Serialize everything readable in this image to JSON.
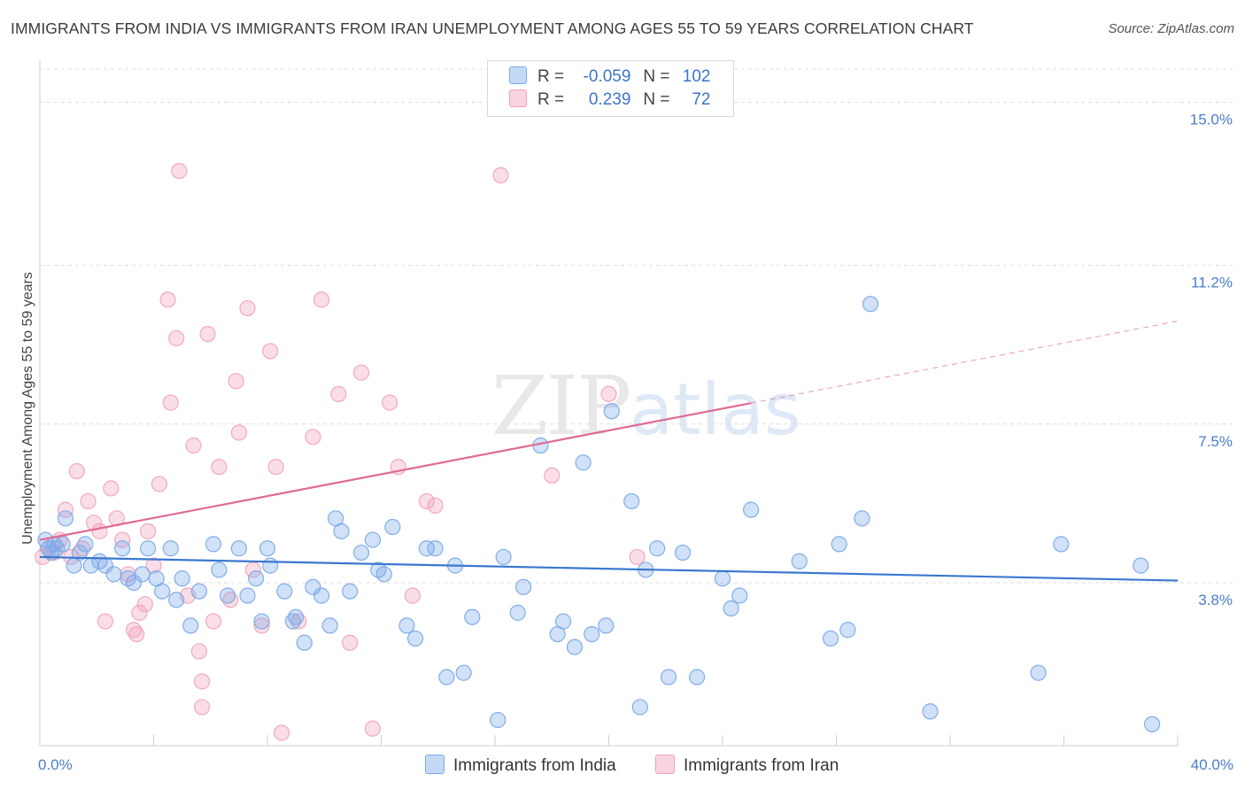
{
  "title": "IMMIGRANTS FROM INDIA VS IMMIGRANTS FROM IRAN UNEMPLOYMENT AMONG AGES 55 TO 59 YEARS CORRELATION CHART",
  "source": "Source: ZipAtlas.com",
  "watermark": {
    "zip": "ZIP",
    "atlas": "atlas"
  },
  "legend": {
    "india": {
      "r_label": "R =",
      "r_value": "-0.059",
      "n_label": "N =",
      "n_value": "102"
    },
    "iran": {
      "r_label": "R =",
      "r_value": "0.239",
      "n_label": "N =",
      "n_value": "72"
    }
  },
  "colors": {
    "india": "#7aaae8",
    "india_line": "#3a78d0",
    "iran": "#f2a0bb",
    "iran_line": "#e06a95"
  },
  "chart_data": {
    "type": "scatter",
    "title": "IMMIGRANTS FROM INDIA VS IMMIGRANTS FROM IRAN UNEMPLOYMENT AMONG AGES 55 TO 59 YEARS CORRELATION CHART",
    "xlabel": "",
    "ylabel": "Unemployment Among Ages 55 to 59 years",
    "xlim": [
      0,
      40
    ],
    "ylim": [
      0,
      15.9
    ],
    "x_tick_labels": [
      "0.0%",
      "40.0%"
    ],
    "y_ticks": [
      3.8,
      7.5,
      11.2,
      15.0
    ],
    "y_tick_labels": [
      "3.8%",
      "7.5%",
      "11.2%",
      "15.0%"
    ],
    "grid": true,
    "legend_position": "top-center",
    "series": [
      {
        "name": "Immigrants from India",
        "trend": {
          "x": [
            0,
            40
          ],
          "y": [
            4.4,
            3.85
          ]
        },
        "points": [
          [
            0.2,
            4.8
          ],
          [
            0.3,
            4.6
          ],
          [
            0.4,
            4.5
          ],
          [
            0.5,
            4.7
          ],
          [
            0.6,
            4.6
          ],
          [
            0.8,
            4.7
          ],
          [
            0.9,
            5.3
          ],
          [
            1.2,
            4.2
          ],
          [
            1.4,
            4.5
          ],
          [
            1.6,
            4.7
          ],
          [
            1.8,
            4.2
          ],
          [
            2.1,
            4.3
          ],
          [
            2.3,
            4.2
          ],
          [
            2.6,
            4.0
          ],
          [
            2.9,
            4.6
          ],
          [
            3.1,
            3.9
          ],
          [
            3.3,
            3.8
          ],
          [
            3.6,
            4.0
          ],
          [
            3.8,
            4.6
          ],
          [
            4.1,
            3.9
          ],
          [
            4.3,
            3.6
          ],
          [
            4.6,
            4.6
          ],
          [
            4.8,
            3.4
          ],
          [
            5.0,
            3.9
          ],
          [
            5.3,
            2.8
          ],
          [
            5.6,
            3.6
          ],
          [
            6.1,
            4.7
          ],
          [
            6.3,
            4.1
          ],
          [
            6.6,
            3.5
          ],
          [
            7.0,
            4.6
          ],
          [
            7.3,
            3.5
          ],
          [
            7.6,
            3.9
          ],
          [
            7.8,
            2.9
          ],
          [
            8.0,
            4.6
          ],
          [
            8.1,
            4.2
          ],
          [
            8.6,
            3.6
          ],
          [
            8.9,
            2.9
          ],
          [
            9.0,
            3.0
          ],
          [
            9.3,
            2.4
          ],
          [
            9.6,
            3.7
          ],
          [
            9.9,
            3.5
          ],
          [
            10.2,
            2.8
          ],
          [
            10.4,
            5.3
          ],
          [
            10.6,
            5.0
          ],
          [
            10.9,
            3.6
          ],
          [
            11.3,
            4.5
          ],
          [
            11.7,
            4.8
          ],
          [
            11.9,
            4.1
          ],
          [
            12.1,
            4.0
          ],
          [
            12.4,
            5.1
          ],
          [
            12.9,
            2.8
          ],
          [
            13.2,
            2.5
          ],
          [
            13.6,
            4.6
          ],
          [
            13.9,
            4.6
          ],
          [
            14.3,
            1.6
          ],
          [
            14.6,
            4.2
          ],
          [
            14.9,
            1.7
          ],
          [
            15.2,
            3.0
          ],
          [
            16.1,
            0.6
          ],
          [
            16.3,
            4.4
          ],
          [
            16.8,
            3.1
          ],
          [
            17.0,
            3.7
          ],
          [
            17.6,
            7.0
          ],
          [
            18.2,
            2.6
          ],
          [
            18.4,
            2.9
          ],
          [
            18.8,
            2.3
          ],
          [
            19.1,
            6.6
          ],
          [
            19.4,
            2.6
          ],
          [
            19.9,
            2.8
          ],
          [
            20.1,
            7.8
          ],
          [
            20.8,
            5.7
          ],
          [
            21.1,
            0.9
          ],
          [
            21.3,
            4.1
          ],
          [
            21.7,
            4.6
          ],
          [
            22.1,
            1.6
          ],
          [
            22.6,
            4.5
          ],
          [
            23.1,
            1.6
          ],
          [
            24.0,
            3.9
          ],
          [
            24.3,
            3.2
          ],
          [
            24.6,
            3.5
          ],
          [
            25.0,
            5.5
          ],
          [
            26.7,
            4.3
          ],
          [
            27.8,
            2.5
          ],
          [
            28.1,
            4.7
          ],
          [
            28.4,
            2.7
          ],
          [
            28.9,
            5.3
          ],
          [
            29.2,
            10.3
          ],
          [
            31.3,
            0.8
          ],
          [
            35.1,
            1.7
          ],
          [
            35.9,
            4.7
          ],
          [
            38.7,
            4.2
          ],
          [
            39.1,
            0.5
          ]
        ]
      },
      {
        "name": "Immigrants from Iran",
        "trend": {
          "x": [
            0,
            40
          ],
          "y": [
            4.8,
            9.9
          ],
          "solid_until_x": 25
        },
        "points": [
          [
            0.1,
            4.4
          ],
          [
            0.3,
            4.6
          ],
          [
            0.5,
            4.5
          ],
          [
            0.7,
            4.8
          ],
          [
            0.9,
            5.5
          ],
          [
            1.1,
            4.4
          ],
          [
            1.3,
            6.4
          ],
          [
            1.5,
            4.6
          ],
          [
            1.7,
            5.7
          ],
          [
            1.9,
            5.2
          ],
          [
            2.1,
            5.0
          ],
          [
            2.3,
            2.9
          ],
          [
            2.5,
            6.0
          ],
          [
            2.7,
            5.3
          ],
          [
            2.9,
            4.8
          ],
          [
            3.1,
            4.0
          ],
          [
            3.3,
            2.7
          ],
          [
            3.4,
            2.6
          ],
          [
            3.5,
            3.1
          ],
          [
            3.7,
            3.3
          ],
          [
            3.8,
            5.0
          ],
          [
            4.0,
            4.2
          ],
          [
            4.2,
            6.1
          ],
          [
            4.5,
            10.4
          ],
          [
            4.6,
            8.0
          ],
          [
            4.8,
            9.5
          ],
          [
            4.9,
            13.4
          ],
          [
            5.2,
            3.5
          ],
          [
            5.4,
            7.0
          ],
          [
            5.6,
            2.2
          ],
          [
            5.7,
            1.5
          ],
          [
            5.7,
            0.9
          ],
          [
            5.9,
            9.6
          ],
          [
            6.1,
            2.9
          ],
          [
            6.3,
            6.5
          ],
          [
            6.7,
            3.4
          ],
          [
            6.9,
            8.5
          ],
          [
            7.0,
            7.3
          ],
          [
            7.3,
            10.2
          ],
          [
            7.5,
            4.1
          ],
          [
            7.8,
            2.8
          ],
          [
            8.1,
            9.2
          ],
          [
            8.3,
            6.5
          ],
          [
            8.5,
            0.3
          ],
          [
            9.1,
            2.9
          ],
          [
            9.6,
            7.2
          ],
          [
            9.9,
            10.4
          ],
          [
            10.5,
            8.2
          ],
          [
            10.9,
            2.4
          ],
          [
            11.3,
            8.7
          ],
          [
            11.7,
            0.4
          ],
          [
            12.3,
            8.0
          ],
          [
            12.6,
            6.5
          ],
          [
            13.1,
            3.5
          ],
          [
            13.6,
            5.7
          ],
          [
            13.9,
            5.6
          ],
          [
            16.2,
            13.3
          ],
          [
            18.0,
            6.3
          ],
          [
            20.0,
            8.2
          ],
          [
            21.0,
            4.4
          ]
        ]
      }
    ]
  },
  "bottom_legend": {
    "india": "Immigrants from India",
    "iran": "Immigrants from Iran"
  }
}
